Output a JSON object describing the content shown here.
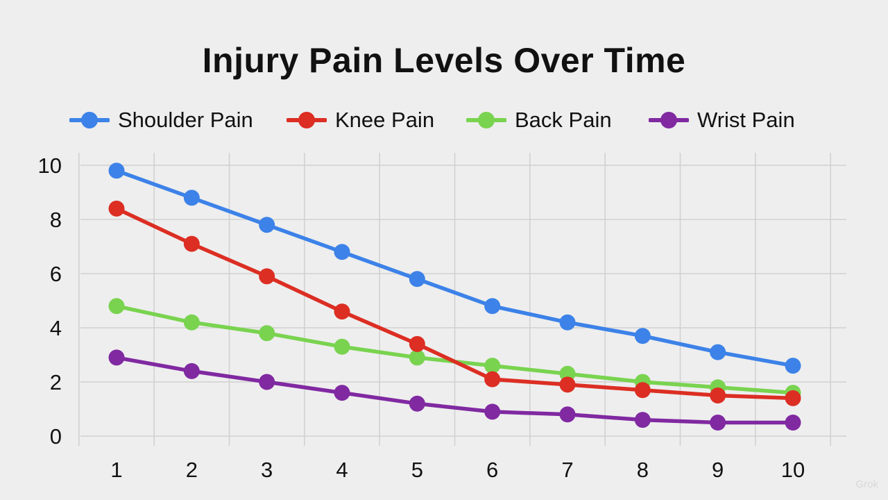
{
  "chart_data": {
    "type": "line",
    "title": "Injury Pain Levels Over Time",
    "xlabel": "",
    "ylabel": "",
    "x": [
      1,
      2,
      3,
      4,
      5,
      6,
      7,
      8,
      9,
      10
    ],
    "x_tick_labels": [
      "1",
      "2",
      "3",
      "4",
      "5",
      "6",
      "7",
      "8",
      "9",
      "10"
    ],
    "y_tick_labels": [
      "0",
      "2",
      "4",
      "6",
      "8",
      "10"
    ],
    "y_ticks": [
      0,
      2,
      4,
      6,
      8,
      10
    ],
    "ylim": [
      0,
      10.1
    ],
    "xlim": [
      0.5,
      10.5
    ],
    "grid": true,
    "legend_position": "top",
    "series": [
      {
        "name": "Shoulder Pain",
        "color": "#3c82e8",
        "values": [
          9.8,
          8.8,
          7.8,
          6.8,
          5.8,
          4.8,
          4.2,
          3.7,
          3.1,
          2.6
        ]
      },
      {
        "name": "Knee Pain",
        "color": "#dc2e23",
        "values": [
          8.4,
          7.1,
          5.9,
          4.6,
          3.4,
          2.1,
          1.9,
          1.7,
          1.5,
          1.4
        ]
      },
      {
        "name": "Back Pain",
        "color": "#79d34f",
        "values": [
          4.8,
          4.2,
          3.8,
          3.3,
          2.9,
          2.6,
          2.3,
          2.0,
          1.8,
          1.6
        ]
      },
      {
        "name": "Wrist Pain",
        "color": "#8029a1",
        "values": [
          2.9,
          2.4,
          2.0,
          1.6,
          1.2,
          0.9,
          0.8,
          0.6,
          0.5,
          0.5
        ]
      }
    ]
  },
  "watermark": "Grok"
}
